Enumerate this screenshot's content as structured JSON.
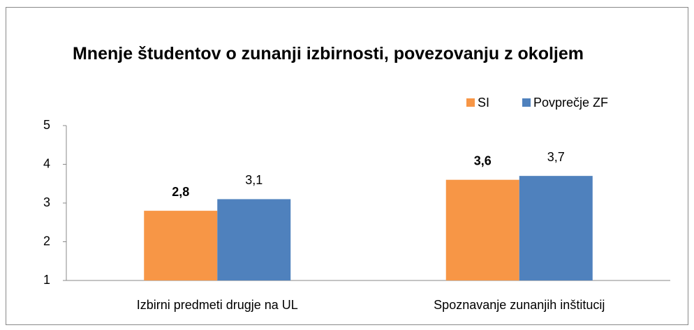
{
  "chart_data": {
    "type": "bar",
    "title": "Mnenje študentov o zunanji izbirnosti, povezovanju z okoljem",
    "categories": [
      "Izbirni predmeti drugje na UL",
      "Spoznavanje zunanjih inštitucij"
    ],
    "series": [
      {
        "name": "SI",
        "color": "#f79646",
        "values": [
          2.8,
          3.6
        ],
        "value_labels": [
          "2,8",
          "3,6"
        ]
      },
      {
        "name": "Povprečje ZF",
        "color": "#4f81bd",
        "values": [
          3.1,
          3.7
        ],
        "value_labels": [
          "3,1",
          "3,7"
        ]
      }
    ],
    "ylim": [
      1,
      5
    ],
    "yticks": [
      1,
      2,
      3,
      4,
      5
    ],
    "grid": false,
    "legend": "top-right"
  }
}
